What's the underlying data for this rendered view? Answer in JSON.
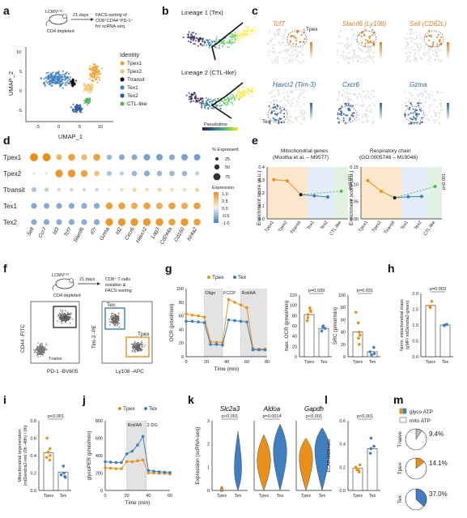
{
  "colors": {
    "tpex1": "#e8a53a",
    "tpex2": "#f2c26b",
    "transit": "#111111",
    "tex1": "#3f7fbf",
    "tex2": "#2a5aa0",
    "ctl": "#5ab55a",
    "orange": "#e8901a",
    "blue": "#3f7fbf"
  },
  "panels": [
    "a",
    "b",
    "c",
    "d",
    "e",
    "f",
    "g",
    "h",
    "i",
    "j",
    "k",
    "l",
    "m"
  ],
  "a": {
    "mouse": "LCMVᶜ¹³",
    "depl": "CD4 depleted",
    "days": "21 days",
    "sort": "FACS-sorting of",
    "sort2": "CD8⁺CD44⁺PD-1⁺",
    "sort3": "for scRNA-seq",
    "ylab": "UMAP_2",
    "xlab": "UMAP_1",
    "xticks": [
      "-5",
      "0",
      "5",
      "10"
    ],
    "yticks": [
      "-5",
      "0",
      "5",
      "10"
    ],
    "legend_title": "Identity",
    "legend": [
      "Tpex1",
      "Tpex2",
      "Ttransit",
      "Tex1",
      "Tex2",
      "CTL-like"
    ]
  },
  "b": {
    "l1": "Lineage 1 (Tex)",
    "l2": "Lineage 2 (CTL-like)",
    "pseudo": "Pseudotime"
  },
  "c": {
    "genes": [
      "Tcf7",
      "Slamf6 (Ly108)",
      "Sell (CD62L)",
      "Havcr2 (Tim-3)",
      "Cxcr6",
      "Gzma"
    ],
    "tpex": "Tpex",
    "tex": "Tex"
  },
  "d": {
    "rows": [
      "Tpex1",
      "Tpex2",
      "Ttransit",
      "Tex1",
      "Tex2"
    ],
    "cols": [
      "Sell",
      "Ccr7",
      "Id3",
      "Tcf7",
      "Slamf6",
      "Il7r",
      "Gzma",
      "Id2",
      "Cxcr6",
      "Havcr2",
      "Lag3",
      "Cd244a",
      "Cd160",
      "Nr4a2"
    ],
    "pct_title": "% Expressed",
    "pct": [
      "25",
      "50",
      "75"
    ],
    "expr_title": "Expression",
    "expr": [
      "1.0",
      "0.5",
      "0.0",
      "-0.5",
      "-1.0"
    ]
  },
  "e": {
    "t1": "Mitochondrial genes",
    "t1b": "(Mootha et al. – M9577)",
    "t2": "Respiratory chain",
    "t2b": "(GO:0005746 – M19046)",
    "ylab": "Enrichment score (a.u.)",
    "p": "p<0.001",
    "y1": [
      "0.4",
      "0.3",
      "0.2",
      "0.1",
      "0.0"
    ],
    "y2": [
      "0.15",
      "0.10",
      "0.05",
      "0.00"
    ],
    "cats": [
      "Tpex1",
      "Tpex2",
      "Ttransit",
      "Tex1",
      "Tex2",
      "CTL-like"
    ]
  },
  "f": {
    "mouse": "LCMVᶜ¹³",
    "depl": "CD4 depleted",
    "days": "21 days",
    "sort": "CD8⁺ T cells",
    "sort2": "isolation &",
    "sort3": "FACS-sorting",
    "ylab": "CD44 -FITC",
    "xlab": "PD-1 -BV605",
    "naive": "Tnaive",
    "ylab2": "Tim-3 -PE",
    "xlab2": "Ly108 -APC",
    "tex": "Tex",
    "tpex": "Tpex"
  },
  "g": {
    "legend": [
      "Tpex",
      "Tex"
    ],
    "ylab": "OCR (pmol/min)",
    "xlab": "Time (min)",
    "drugs": [
      "Oligo",
      "FCCP",
      "Rot/AA"
    ],
    "xticks": [
      "0",
      "20",
      "40",
      "60",
      "80"
    ],
    "yticks": [
      "0",
      "20",
      "40",
      "60",
      "80",
      "100"
    ],
    "p1": "p=0.039",
    "p2": "p=0.031",
    "ylab2": "max. OCR (pmol/min)",
    "ylab3": "SRC (pmol/min)",
    "y2": [
      "0",
      "20",
      "40",
      "60",
      "80",
      "100",
      "120"
    ],
    "y3": [
      "0",
      "20",
      "40",
      "60",
      "80",
      "100"
    ],
    "cats": [
      "Tpex",
      "Tex"
    ]
  },
  "h": {
    "p": "p=0.003",
    "ylab": "Norm. mitochondrial mass",
    "ylab2": "(gMFI mtDendra2-green)",
    "yticks": [
      "0.0",
      "0.5",
      "1.0",
      "1.5",
      "2.0"
    ],
    "cats": [
      "Tpex",
      "Tex"
    ]
  },
  "i": {
    "p": "p<0.001",
    "ylab": "Mitochondrial regeneration",
    "ylab2": "(mtDendra2-red (0h -48h) / 0h)",
    "yticks": [
      "0.0",
      "0.2",
      "0.4",
      "0.6",
      "0.8"
    ],
    "cats": [
      "Tpex",
      "Tex"
    ]
  },
  "j": {
    "legend": [
      "Tpex",
      "Tex"
    ],
    "ylab": "glycoPER (pmol/min)",
    "xlab": "Time (min)",
    "drugs": [
      "Rot/AA",
      "2-DG"
    ],
    "xticks": [
      "0",
      "20",
      "40",
      "60"
    ],
    "yticks": [
      "0",
      "200",
      "400",
      "600",
      "800"
    ]
  },
  "k": {
    "ylab": "Expression (scRNA-seq)",
    "genes": [
      "Slc2a3",
      "Aldoa",
      "Gapdh"
    ],
    "p": [
      "p<0.001",
      "p=0.0014",
      "p<0.001"
    ],
    "cats": [
      "Tpex",
      "Tex"
    ],
    "yticks": [
      "0",
      "1",
      "2",
      "3"
    ]
  },
  "l": {
    "p": "p<0.001",
    "ylab": "ECAR:OCR ratio",
    "yticks": [
      "0.0",
      "0.2",
      "0.4",
      "0.6"
    ],
    "cats": [
      "Tpex",
      "Tex"
    ]
  },
  "m": {
    "legend": [
      "glyco ATP",
      "mito ATP"
    ],
    "rows": [
      "Tnaive",
      "Tpex",
      "Tex"
    ],
    "vals": [
      "9.4%",
      "14.1%",
      "37.0%"
    ],
    "fracs": [
      0.094,
      0.141,
      0.37
    ]
  },
  "chart_data": [
    {
      "type": "line",
      "title": "Mitochondrial genes",
      "xlabel": "",
      "ylabel": "Enrichment score (a.u.)",
      "categories": [
        "Tpex1",
        "Tpex2",
        "Ttransit",
        "Tex1",
        "Tex2",
        "CTL-like"
      ],
      "values": [
        0.34,
        0.33,
        0.21,
        0.2,
        0.19,
        0.24
      ],
      "ylim": [
        0,
        0.45
      ]
    },
    {
      "type": "line",
      "title": "Respiratory chain",
      "xlabel": "",
      "ylabel": "Enrichment score (a.u.)",
      "categories": [
        "Tpex1",
        "Tpex2",
        "Ttransit",
        "Tex1",
        "Tex2",
        "CTL-like"
      ],
      "values": [
        0.118,
        0.085,
        0.065,
        0.068,
        0.069,
        0.1
      ],
      "ylim": [
        0,
        0.16
      ]
    },
    {
      "type": "line",
      "title": "",
      "xlabel": "Time (min)",
      "ylabel": "OCR (pmol/min)",
      "x": [
        0,
        6,
        12,
        18,
        24,
        30,
        36,
        42,
        48,
        54,
        60,
        66,
        72,
        78
      ],
      "series": [
        {
          "name": "Tpex",
          "values": [
            63,
            61,
            60,
            58,
            22,
            21,
            21,
            84,
            80,
            76,
            72,
            12,
            11,
            11
          ]
        },
        {
          "name": "Tex",
          "values": [
            52,
            52,
            51,
            50,
            18,
            18,
            17,
            54,
            53,
            52,
            51,
            10,
            10,
            10
          ]
        }
      ],
      "ylim": [
        0,
        100
      ]
    },
    {
      "type": "bar",
      "title": "",
      "xlabel": "",
      "ylabel": "max. OCR (pmol/min)",
      "categories": [
        "Tpex",
        "Tex"
      ],
      "values": [
        82,
        55
      ],
      "ylim": [
        0,
        120
      ]
    },
    {
      "type": "bar",
      "title": "",
      "xlabel": "",
      "ylabel": "SRC (pmol/min)",
      "categories": [
        "Tpex",
        "Tex"
      ],
      "values": [
        40,
        8
      ],
      "ylim": [
        0,
        100
      ]
    },
    {
      "type": "bar",
      "title": "",
      "xlabel": "",
      "ylabel": "Norm. mitochondrial mass",
      "categories": [
        "Tpex",
        "Tex"
      ],
      "values": [
        1.62,
        1.0
      ],
      "ylim": [
        0,
        2
      ]
    },
    {
      "type": "bar",
      "title": "",
      "xlabel": "",
      "ylabel": "Mitochondrial regeneration",
      "categories": [
        "Tpex",
        "Tex"
      ],
      "values": [
        0.43,
        0.21
      ],
      "ylim": [
        0,
        0.8
      ]
    },
    {
      "type": "line",
      "title": "",
      "xlabel": "Time (min)",
      "ylabel": "glycoPER (pmol/min)",
      "x": [
        0,
        5,
        10,
        15,
        20,
        25,
        30,
        35,
        40,
        45,
        50,
        55,
        60
      ],
      "series": [
        {
          "name": "Tpex",
          "values": [
            260,
            255,
            250,
            250,
            330,
            330,
            340,
            350,
            200,
            200,
            195,
            195,
            190
          ]
        },
        {
          "name": "Tex",
          "values": [
            330,
            325,
            320,
            320,
            420,
            450,
            520,
            620,
            230,
            220,
            215,
            210,
            205
          ]
        }
      ],
      "ylim": [
        0,
        800
      ]
    },
    {
      "type": "bar",
      "title": "",
      "xlabel": "",
      "ylabel": "ECAR:OCR ratio",
      "categories": [
        "Tpex",
        "Tex"
      ],
      "values": [
        0.19,
        0.36
      ],
      "ylim": [
        0,
        0.6
      ]
    },
    {
      "type": "pie",
      "title": "",
      "categories": [
        "Tnaive",
        "Tpex",
        "Tex"
      ],
      "values": [
        9.4,
        14.1,
        37.0
      ]
    }
  ]
}
